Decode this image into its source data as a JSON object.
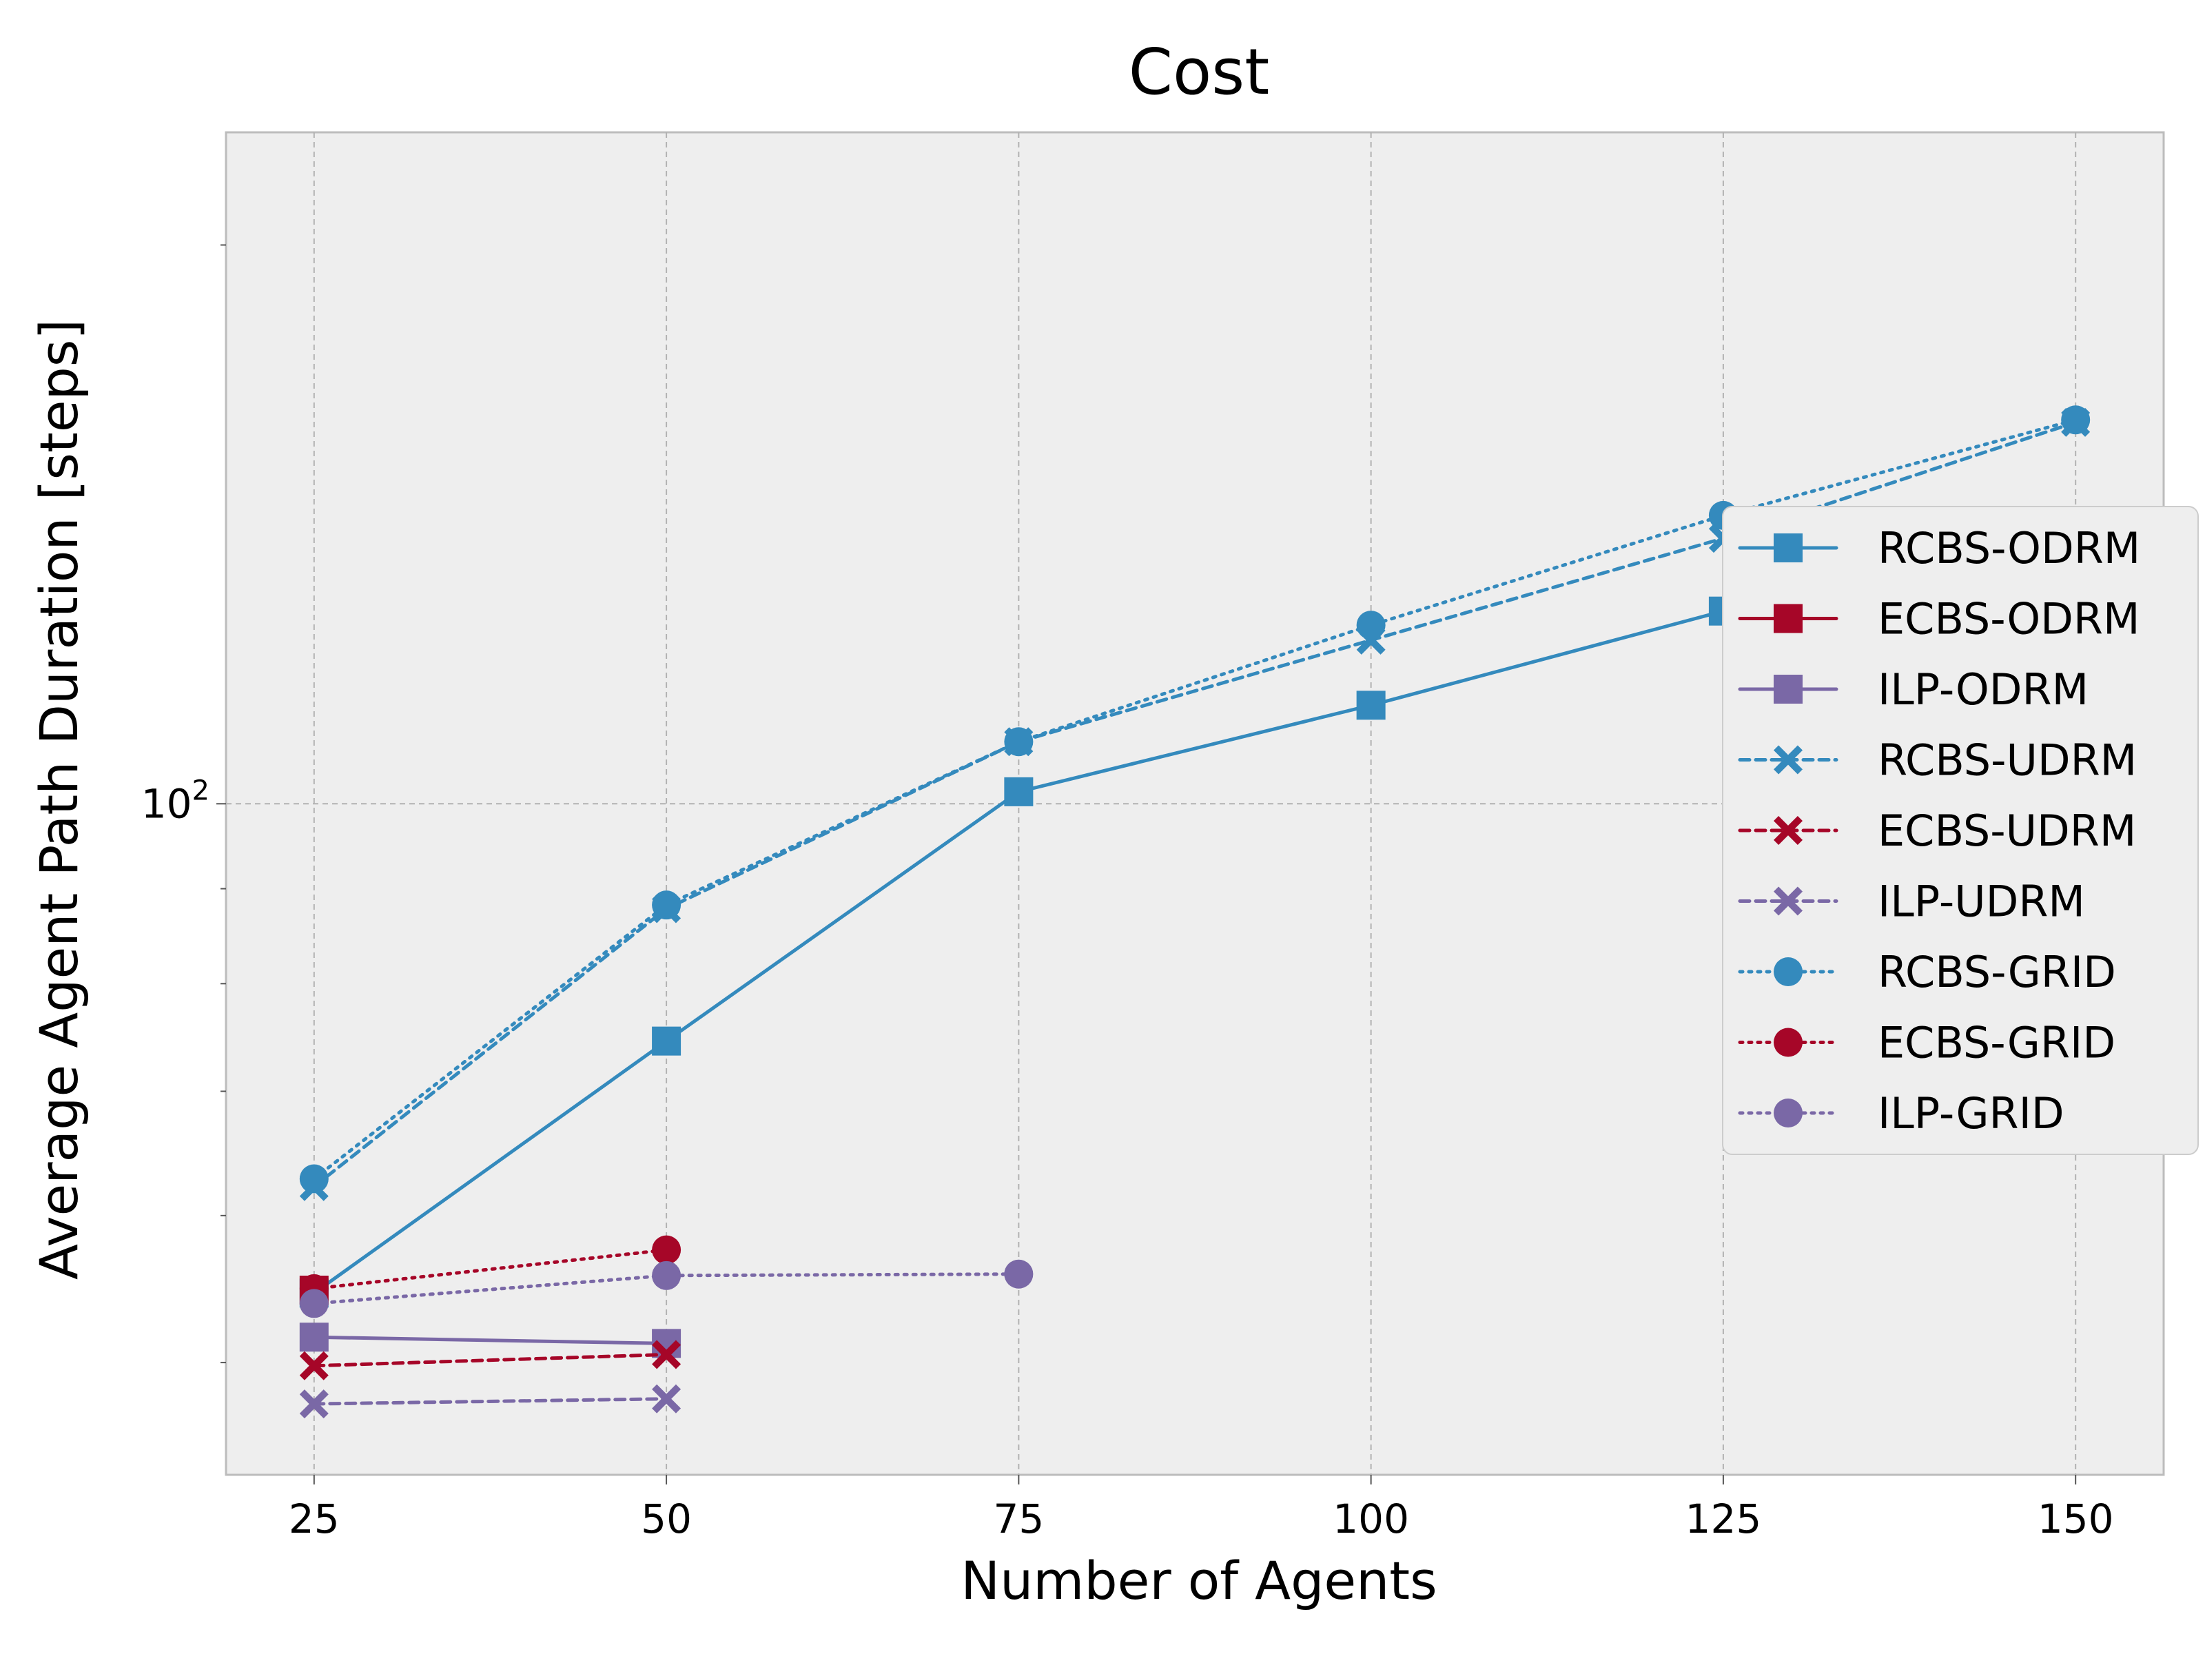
{
  "chart_data": {
    "type": "line",
    "title": "Cost",
    "xlabel": "Number of Agents",
    "ylabel": "Average Agent Path Duration [steps]",
    "x_ticks": [
      25,
      50,
      75,
      100,
      125,
      150
    ],
    "x_tick_labels": [
      "25",
      "50",
      "75",
      "100",
      "125",
      "150"
    ],
    "y_scale": "log",
    "y_ticks": [
      100
    ],
    "y_tick_labels": [
      {
        "base": "10",
        "exp": "2"
      }
    ],
    "xlim": [
      18.75,
      156.25
    ],
    "ylim": [
      43.5,
      230
    ],
    "grid": true,
    "legend_position": "right",
    "series": [
      {
        "name": "RCBS-ODRM",
        "color": "#348abd",
        "linestyle": "solid",
        "marker": "square",
        "x": [
          25,
          50,
          75,
          100,
          125
        ],
        "y": [
          54.5,
          74.5,
          101.5,
          113,
          127
        ]
      },
      {
        "name": "ECBS-ODRM",
        "color": "#a60628",
        "linestyle": "solid",
        "marker": "square",
        "x": [
          25
        ],
        "y": [
          54.7
        ]
      },
      {
        "name": "ILP-ODRM",
        "color": "#7a68a6",
        "linestyle": "solid",
        "marker": "square",
        "x": [
          25,
          50
        ],
        "y": [
          51.6,
          51.2
        ]
      },
      {
        "name": "RCBS-UDRM",
        "color": "#348abd",
        "linestyle": "dashed",
        "marker": "x",
        "x": [
          25,
          50,
          75,
          100,
          125,
          150
        ],
        "y": [
          62.2,
          87.8,
          108,
          122.5,
          139,
          160.5
        ]
      },
      {
        "name": "ECBS-UDRM",
        "color": "#a60628",
        "linestyle": "dashed",
        "marker": "x",
        "x": [
          25,
          50
        ],
        "y": [
          49.8,
          50.5
        ]
      },
      {
        "name": "ILP-UDRM",
        "color": "#7a68a6",
        "linestyle": "dashed",
        "marker": "x",
        "x": [
          25,
          50
        ],
        "y": [
          47.5,
          47.8
        ]
      },
      {
        "name": "RCBS-GRID",
        "color": "#348abd",
        "linestyle": "dotted",
        "marker": "circle",
        "x": [
          25,
          50,
          75,
          100,
          125,
          150
        ],
        "y": [
          62.8,
          88.2,
          108,
          124.8,
          143,
          161
        ]
      },
      {
        "name": "ECBS-GRID",
        "color": "#a60628",
        "linestyle": "dotted",
        "marker": "circle",
        "x": [
          25,
          50
        ],
        "y": [
          54.8,
          57.5
        ]
      },
      {
        "name": "ILP-GRID",
        "color": "#7a68a6",
        "linestyle": "dotted",
        "marker": "circle",
        "x": [
          25,
          50,
          75
        ],
        "y": [
          53.8,
          55.7,
          55.8
        ]
      }
    ]
  }
}
